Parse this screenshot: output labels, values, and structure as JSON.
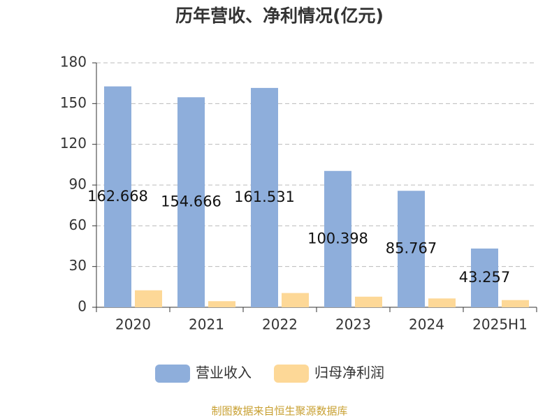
{
  "chart_data": {
    "type": "bar",
    "title": "历年营收、净利情况(亿元)",
    "categories": [
      "2020",
      "2021",
      "2022",
      "2023",
      "2024",
      "2025H1"
    ],
    "series": [
      {
        "name": "营业收入",
        "color": "#8eaedb",
        "values": [
          162.668,
          154.666,
          161.531,
          100.398,
          85.767,
          43.257
        ],
        "show_labels": true
      },
      {
        "name": "归母净利润",
        "color": "#fdd897",
        "values": [
          12.5,
          4.5,
          10.5,
          7.8,
          6.5,
          5.3
        ],
        "show_labels": false
      }
    ],
    "ylim": [
      0,
      180
    ],
    "yticks": [
      0,
      30,
      60,
      90,
      120,
      150,
      180
    ],
    "grid": true,
    "legend": "bottom",
    "source": "制图数据来自恒生聚源数据库"
  }
}
